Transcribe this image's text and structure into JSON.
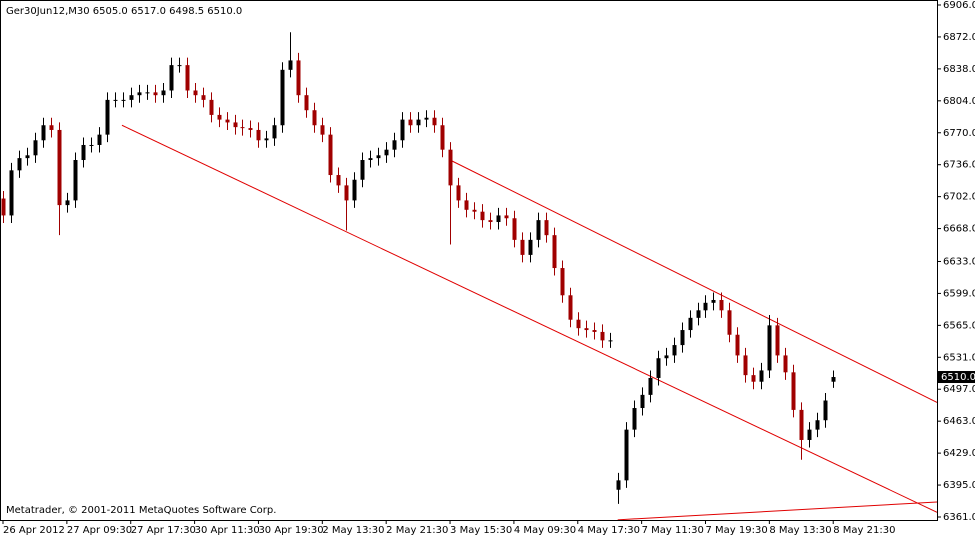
{
  "chart_data": {
    "type": "candlestick",
    "title": "Ger30Jun12,M30  6505.0 6517.0 6498.5 6510.0",
    "footer": "Metatrader, © 2001-2011 MetaQuotes Software Corp.",
    "up_color": "#000000",
    "down_color": "#a00000",
    "line_color": "#e00000",
    "xlim": [
      0,
      117
    ],
    "ylim": [
      6361,
      6906
    ],
    "xticks": [
      {
        "value": 0,
        "label": "26 Apr 2012"
      },
      {
        "value": 8,
        "label": "27 Apr 09:30"
      },
      {
        "value": 16,
        "label": "27 Apr 17:30"
      },
      {
        "value": 24,
        "label": "30 Apr 11:30"
      },
      {
        "value": 32,
        "label": "30 Apr 19:30"
      },
      {
        "value": 40,
        "label": "2 May 13:30"
      },
      {
        "value": 48,
        "label": "2 May 21:30"
      },
      {
        "value": 56,
        "label": "3 May 15:30"
      },
      {
        "value": 64,
        "label": "4 May 09:30"
      },
      {
        "value": 72,
        "label": "4 May 17:30"
      },
      {
        "value": 80,
        "label": "7 May 11:30"
      },
      {
        "value": 88,
        "label": "7 May 19:30"
      },
      {
        "value": 96,
        "label": "8 May 13:30"
      },
      {
        "value": 104,
        "label": "8 May 21:30"
      }
    ],
    "yticks": [
      {
        "value": 6906,
        "label": "6906.0"
      },
      {
        "value": 6872,
        "label": "6872.0"
      },
      {
        "value": 6838,
        "label": "6838.0"
      },
      {
        "value": 6804,
        "label": "6804.0"
      },
      {
        "value": 6770,
        "label": "6770.0"
      },
      {
        "value": 6736,
        "label": "6736.0"
      },
      {
        "value": 6702,
        "label": "6702.0"
      },
      {
        "value": 6668,
        "label": "6668.0"
      },
      {
        "value": 6633,
        "label": "6633.0"
      },
      {
        "value": 6599,
        "label": "6599.0"
      },
      {
        "value": 6565,
        "label": "6565.0"
      },
      {
        "value": 6531,
        "label": "6531.0"
      },
      {
        "value": 6497,
        "label": "6497.0"
      },
      {
        "value": 6463,
        "label": "6463.0"
      },
      {
        "value": 6429,
        "label": "6429.0"
      },
      {
        "value": 6395,
        "label": "6395.0"
      },
      {
        "value": 6361,
        "label": "6361.0"
      }
    ],
    "last_price": {
      "value": 6510,
      "label": "6510.0"
    },
    "open": [
      6700,
      6682,
      6730,
      6743,
      6746,
      6762,
      6778,
      6773,
      6693,
      6698,
      6741,
      6757,
      6757,
      6768,
      6805,
      6805,
      6805,
      6810,
      6813,
      6813,
      6810,
      6815,
      6842,
      6842,
      6815,
      6810,
      6805,
      6789,
      6784,
      6781,
      6776,
      6775,
      6773,
      6762,
      6764,
      6778,
      6837,
      6847,
      6810,
      6794,
      6778,
      6768,
      6725,
      6714,
      6698,
      6720,
      6741,
      6743,
      6746,
      6752,
      6762,
      6784,
      6778,
      6784,
      6786,
      6778,
      6752,
      6714,
      6698,
      6688,
      6686,
      6677,
      6675,
      6682,
      6679,
      6656,
      6640,
      6656,
      6677,
      6661,
      6626,
      6597,
      6571,
      6562,
      6560,
      6558,
      6549,
      6390,
      6400,
      6454,
      6477,
      6491,
      6509,
      6530,
      6533,
      6544,
      6560,
      6573,
      6581,
      6589,
      6592,
      6581,
      6555,
      6533,
      6512,
      6505,
      6517,
      6565,
      6533,
      6515,
      6475,
      6443,
      6454,
      6464,
      6505
    ],
    "high": [
      6708,
      6738,
      6751,
      6754,
      6770,
      6786,
      6786,
      6781,
      6706,
      6749,
      6765,
      6765,
      6776,
      6813,
      6813,
      6813,
      6818,
      6821,
      6821,
      6821,
      6823,
      6850,
      6850,
      6850,
      6823,
      6818,
      6813,
      6797,
      6792,
      6789,
      6784,
      6783,
      6781,
      6772,
      6786,
      6845,
      6877,
      6855,
      6818,
      6802,
      6786,
      6776,
      6733,
      6722,
      6728,
      6749,
      6751,
      6754,
      6760,
      6770,
      6792,
      6792,
      6792,
      6794,
      6794,
      6786,
      6760,
      6722,
      6706,
      6696,
      6694,
      6685,
      6690,
      6690,
      6687,
      6664,
      6664,
      6685,
      6685,
      6669,
      6634,
      6605,
      6579,
      6570,
      6568,
      6566,
      6557,
      6408,
      6462,
      6485,
      6499,
      6517,
      6538,
      6541,
      6552,
      6568,
      6581,
      6589,
      6597,
      6600,
      6600,
      6589,
      6563,
      6541,
      6520,
      6525,
      6576,
      6573,
      6541,
      6523,
      6483,
      6462,
      6472,
      6493,
      6517
    ],
    "low": [
      6674,
      6674,
      6722,
      6735,
      6738,
      6754,
      6765,
      6661,
      6685,
      6690,
      6733,
      6749,
      6749,
      6760,
      6797,
      6797,
      6797,
      6802,
      6805,
      6802,
      6802,
      6807,
      6834,
      6807,
      6802,
      6797,
      6781,
      6776,
      6773,
      6768,
      6767,
      6765,
      6754,
      6754,
      6756,
      6770,
      6829,
      6802,
      6786,
      6770,
      6760,
      6717,
      6706,
      6666,
      6690,
      6712,
      6733,
      6735,
      6738,
      6744,
      6754,
      6770,
      6770,
      6776,
      6770,
      6744,
      6651,
      6690,
      6680,
      6678,
      6669,
      6667,
      6667,
      6671,
      6648,
      6632,
      6632,
      6648,
      6653,
      6618,
      6589,
      6563,
      6554,
      6552,
      6550,
      6541,
      6541,
      6375,
      6392,
      6446,
      6469,
      6483,
      6501,
      6522,
      6525,
      6536,
      6552,
      6565,
      6573,
      6581,
      6573,
      6547,
      6525,
      6504,
      6497,
      6497,
      6509,
      6525,
      6507,
      6467,
      6422,
      6435,
      6446,
      6456,
      6498.5
    ],
    "close": [
      6682,
      6730,
      6743,
      6746,
      6762,
      6778,
      6773,
      6693,
      6698,
      6741,
      6757,
      6757,
      6768,
      6805,
      6805,
      6805,
      6810,
      6813,
      6813,
      6810,
      6815,
      6842,
      6842,
      6815,
      6810,
      6805,
      6789,
      6784,
      6781,
      6776,
      6775,
      6773,
      6762,
      6764,
      6778,
      6837,
      6847,
      6810,
      6794,
      6778,
      6768,
      6725,
      6714,
      6698,
      6720,
      6741,
      6743,
      6746,
      6752,
      6762,
      6784,
      6778,
      6784,
      6786,
      6778,
      6752,
      6714,
      6698,
      6688,
      6686,
      6677,
      6675,
      6682,
      6679,
      6656,
      6640,
      6656,
      6677,
      6661,
      6626,
      6597,
      6571,
      6562,
      6560,
      6558,
      6549,
      6549,
      6400,
      6454,
      6477,
      6491,
      6509,
      6530,
      6533,
      6544,
      6560,
      6573,
      6581,
      6589,
      6592,
      6581,
      6555,
      6533,
      6512,
      6505,
      6517,
      6565,
      6533,
      6515,
      6475,
      6443,
      6454,
      6464,
      6485,
      6510
    ],
    "trendlines": [
      {
        "x": [
          14.9,
          117
        ],
        "y": [
          6778,
          6366
        ]
      },
      {
        "x": [
          56,
          117
        ],
        "y": [
          6741,
          6483
        ]
      },
      {
        "x": [
          77,
          117
        ],
        "y": [
          6358,
          6377
        ]
      }
    ]
  }
}
